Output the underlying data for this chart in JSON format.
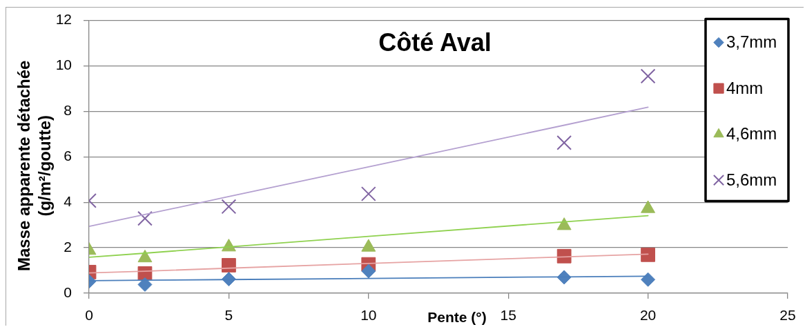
{
  "chart_data": {
    "type": "scatter",
    "title": "Côté Aval",
    "xlabel": "Pente (°)",
    "ylabel": "Masse apparente détachée\n(g/m²/goutte)",
    "x": [
      0,
      2,
      5,
      10,
      17,
      20
    ],
    "xlim": [
      0,
      25
    ],
    "xticks": [
      0,
      5,
      10,
      15,
      20,
      25
    ],
    "ylim": [
      0,
      12
    ],
    "yticks": [
      0,
      2,
      4,
      6,
      8,
      10,
      12
    ],
    "grid": "y",
    "legend": "top right",
    "series": [
      {
        "name": "3,7mm",
        "marker": "diamond",
        "color": "#4f81bd",
        "values": [
          0.52,
          0.38,
          0.62,
          0.97,
          0.7,
          0.6
        ]
      },
      {
        "name": "4mm",
        "marker": "square",
        "color": "#c0504d",
        "values": [
          0.93,
          0.87,
          1.23,
          1.27,
          1.63,
          1.69
        ]
      },
      {
        "name": "4,6mm",
        "marker": "triangle",
        "color": "#9bbb59",
        "values": [
          1.88,
          1.55,
          2.03,
          2.02,
          2.97,
          3.72
        ]
      },
      {
        "name": "5,6mm",
        "marker": "cross",
        "color": "#8064a2",
        "values": [
          4.07,
          3.29,
          3.81,
          4.37,
          6.62,
          9.55
        ]
      },
      {
        "type": "line",
        "marker": "none",
        "color": "#4a7ebb",
        "values": [
          0.55,
          0.57,
          0.6,
          0.65,
          0.72,
          0.75
        ]
      },
      {
        "type": "line",
        "marker": "none",
        "color": "#e6a3a3",
        "values": [
          0.89,
          0.97,
          1.1,
          1.31,
          1.6,
          1.72
        ]
      },
      {
        "type": "line",
        "marker": "none",
        "color": "#8fd14f",
        "values": [
          1.58,
          1.76,
          2.04,
          2.5,
          3.14,
          3.41
        ]
      },
      {
        "type": "line",
        "marker": "none",
        "color": "#b4a0d0",
        "values": [
          2.94,
          3.46,
          4.25,
          5.56,
          7.39,
          8.18
        ]
      }
    ]
  }
}
